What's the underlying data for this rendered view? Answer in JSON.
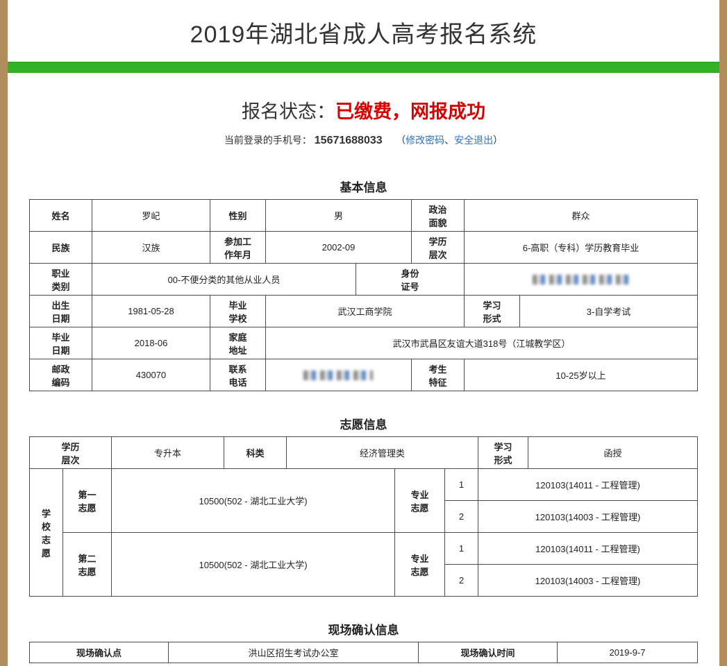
{
  "header": {
    "title": "2019年湖北省成人高考报名系统"
  },
  "status": {
    "label": "报名状态：",
    "value": "已缴费，网报成功",
    "login_prefix": "当前登录的手机号：",
    "phone": "15671688033",
    "left_paren": "（",
    "change_pwd": "修改密码",
    "separator": "、",
    "logout": "安全退出",
    "right_paren": "）"
  },
  "basic": {
    "section_title": "基本信息",
    "r1": {
      "name_l": "姓名",
      "name_v": "罗屺",
      "gender_l": "性别",
      "gender_v": "男",
      "politics_l": "政治\n面貌",
      "politics_v": "群众"
    },
    "r2": {
      "nation_l": "民族",
      "nation_v": "汉族",
      "workdate_l": "参加工\n作年月",
      "workdate_v": "2002-09",
      "edu_l": "学历\n层次",
      "edu_v": "6-高职（专科）学历教育毕业"
    },
    "r3": {
      "job_l": "职业\n类别",
      "job_v": "00-不便分类的其他从业人员",
      "id_l": "身份\n证号"
    },
    "r4": {
      "birth_l": "出生\n日期",
      "birth_v": "1981-05-28",
      "gradschool_l": "毕业\n学校",
      "gradschool_v": "武汉工商学院",
      "studyform_l": "学习\n形式",
      "studyform_v": "3-自学考试"
    },
    "r5": {
      "graddate_l": "毕业\n日期",
      "graddate_v": "2018-06",
      "addr_l": "家庭\n地址",
      "addr_v": "武汉市武昌区友谊大道318号（江城教学区）"
    },
    "r6": {
      "zip_l": "邮政\n编码",
      "zip_v": "430070",
      "tel_l": "联系\n电话",
      "feature_l": "考生\n特征",
      "feature_v": "10-25岁以上"
    }
  },
  "choice": {
    "section_title": "志愿信息",
    "head": {
      "edu_l": "学历\n层次",
      "edu_v": "专升本",
      "cat_l": "科类",
      "cat_v": "经济管理类",
      "form_l": "学习\n形式",
      "form_v": "函授"
    },
    "group_l": "学\n校\n志\n愿",
    "first_l": "第一\n志愿",
    "second_l": "第二\n志愿",
    "major_l": "专业\n志愿",
    "school1": "10500(502 - 湖北工业大学)",
    "school2": "10500(502 - 湖北工业大学)",
    "n1": "1",
    "n2": "2",
    "major1a": "120103(14011 - 工程管理)",
    "major1b": "120103(14003 - 工程管理)",
    "major2a": "120103(14011 - 工程管理)",
    "major2b": "120103(14003 - 工程管理)"
  },
  "confirm": {
    "section_title": "现场确认信息",
    "place_l": "现场确认点",
    "place_v": "洪山区招生考试办公室",
    "time_l": "现场确认时间",
    "time_v": "2019-9-7"
  }
}
